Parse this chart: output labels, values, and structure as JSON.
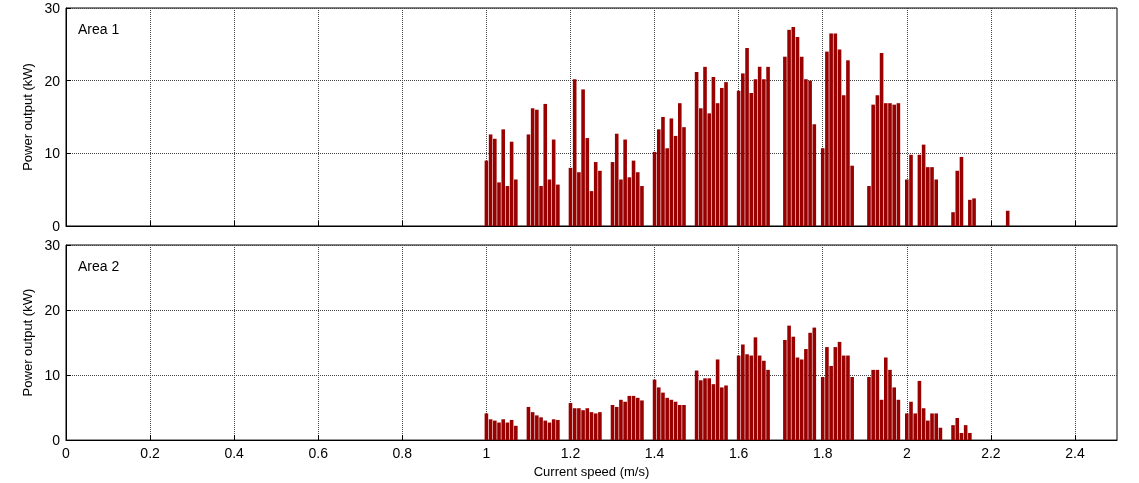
{
  "chart_data": [
    {
      "type": "bar",
      "annotations": [
        "Area 1"
      ],
      "ylabel": "Power output (kW)",
      "xlim": [
        0,
        2.5
      ],
      "xticks": [
        0,
        0.2,
        0.4,
        0.6,
        0.8,
        1,
        1.2,
        1.4,
        1.6,
        1.8,
        2,
        2.2,
        2.4
      ],
      "ylim": [
        0,
        30
      ],
      "yticks": [
        0,
        10,
        20,
        30
      ],
      "grid": true,
      "tick_labels": "y",
      "x": [
        1.0,
        1.01,
        1.02,
        1.03,
        1.04,
        1.05,
        1.06,
        1.07,
        1.1,
        1.11,
        1.12,
        1.13,
        1.14,
        1.15,
        1.16,
        1.17,
        1.2,
        1.21,
        1.22,
        1.23,
        1.24,
        1.25,
        1.26,
        1.27,
        1.3,
        1.31,
        1.32,
        1.33,
        1.34,
        1.35,
        1.36,
        1.37,
        1.4,
        1.41,
        1.42,
        1.43,
        1.44,
        1.45,
        1.46,
        1.47,
        1.5,
        1.51,
        1.52,
        1.53,
        1.54,
        1.55,
        1.56,
        1.57,
        1.6,
        1.61,
        1.62,
        1.63,
        1.64,
        1.65,
        1.66,
        1.67,
        1.71,
        1.72,
        1.73,
        1.74,
        1.75,
        1.76,
        1.77,
        1.78,
        1.8,
        1.81,
        1.82,
        1.83,
        1.84,
        1.85,
        1.86,
        1.87,
        1.91,
        1.92,
        1.93,
        1.94,
        1.95,
        1.96,
        1.97,
        1.98,
        2.0,
        2.01,
        2.03,
        2.04,
        2.05,
        2.06,
        2.07,
        2.11,
        2.12,
        2.13,
        2.15,
        2.16,
        2.24
      ],
      "series": [
        {
          "color": "#990000",
          "values": [
            9,
            12.6,
            12,
            6,
            13.3,
            5.5,
            11.6,
            6.4,
            12.6,
            16.2,
            16,
            5.5,
            16.8,
            6.4,
            11.9,
            5.7,
            8,
            20.2,
            7.4,
            18.8,
            12.1,
            4.8,
            8.8,
            7.6,
            8.8,
            12.7,
            6.4,
            11.9,
            6.7,
            9,
            7.4,
            5.5,
            10.2,
            13.3,
            15,
            10.7,
            14.8,
            12.4,
            16.9,
            13.6,
            21.2,
            16.2,
            21.9,
            15.5,
            20.5,
            16.9,
            19,
            19.8,
            18.6,
            21,
            24.5,
            18.3,
            20.2,
            21.9,
            20.2,
            21.9,
            23.3,
            27,
            27.4,
            26,
            23.3,
            20.2,
            20,
            14,
            10.7,
            24,
            26.5,
            26.5,
            24.3,
            18,
            22.8,
            8.3,
            5.5,
            16.7,
            18,
            23.8,
            16.9,
            16.9,
            16.7,
            16.9,
            6.4,
            9.8,
            9.8,
            11.2,
            8.1,
            8.1,
            6.4,
            1.9,
            7.6,
            9.5,
            3.6,
            3.8,
            2.1
          ]
        }
      ]
    },
    {
      "type": "bar",
      "annotations": [
        "Area 2"
      ],
      "xlabel": "Current speed (m/s)",
      "ylabel": "Power output (kW)",
      "xlim": [
        0,
        2.5
      ],
      "xticks": [
        0,
        0.2,
        0.4,
        0.6,
        0.8,
        1,
        1.2,
        1.4,
        1.6,
        1.8,
        2,
        2.2,
        2.4
      ],
      "ylim": [
        0,
        30
      ],
      "yticks": [
        0,
        10,
        20,
        30
      ],
      "grid": true,
      "x": [
        1.0,
        1.01,
        1.02,
        1.03,
        1.04,
        1.05,
        1.06,
        1.07,
        1.1,
        1.11,
        1.12,
        1.13,
        1.14,
        1.15,
        1.16,
        1.17,
        1.2,
        1.21,
        1.22,
        1.23,
        1.24,
        1.25,
        1.26,
        1.27,
        1.3,
        1.31,
        1.32,
        1.33,
        1.34,
        1.35,
        1.36,
        1.37,
        1.4,
        1.41,
        1.42,
        1.43,
        1.44,
        1.45,
        1.46,
        1.47,
        1.5,
        1.51,
        1.52,
        1.53,
        1.54,
        1.55,
        1.56,
        1.57,
        1.6,
        1.61,
        1.62,
        1.63,
        1.64,
        1.65,
        1.66,
        1.67,
        1.71,
        1.72,
        1.73,
        1.74,
        1.75,
        1.76,
        1.77,
        1.78,
        1.8,
        1.81,
        1.82,
        1.83,
        1.84,
        1.85,
        1.86,
        1.87,
        1.91,
        1.92,
        1.93,
        1.94,
        1.95,
        1.96,
        1.97,
        1.98,
        2.0,
        2.01,
        2.02,
        2.03,
        2.04,
        2.05,
        2.06,
        2.07,
        2.08,
        2.11,
        2.12,
        2.13,
        2.14,
        2.15
      ],
      "series": [
        {
          "color": "#990000",
          "values": [
            4.1,
            3.2,
            3,
            2.7,
            3.2,
            2.7,
            3.1,
            2.2,
            5.1,
            4.3,
            3.8,
            3.5,
            3,
            2.7,
            3.2,
            3.1,
            5.7,
            4.9,
            4.9,
            4.6,
            4.9,
            4.3,
            4.1,
            4.3,
            5.4,
            5.1,
            6.2,
            5.9,
            6.8,
            6.8,
            6.5,
            6.1,
            9.3,
            8.1,
            7.3,
            6.5,
            6.2,
            5.9,
            5.4,
            5.4,
            10.7,
            9.2,
            9.5,
            9.5,
            8.6,
            12.4,
            8.1,
            8.4,
            13,
            14.7,
            13.2,
            13,
            15.8,
            13,
            12.2,
            10.8,
            15.4,
            17.6,
            15.9,
            12.7,
            12.4,
            14,
            16.5,
            17.3,
            9.7,
            14.3,
            11.4,
            14.3,
            15.1,
            13,
            13,
            9.7,
            9.7,
            10.8,
            10.8,
            6.2,
            12.7,
            10.8,
            8.1,
            6.2,
            4.1,
            5.9,
            4.1,
            9.1,
            4.9,
            3,
            4.1,
            4.1,
            1.9,
            2.3,
            3.4,
            1.1,
            2.3,
            1.1
          ]
        }
      ]
    }
  ]
}
